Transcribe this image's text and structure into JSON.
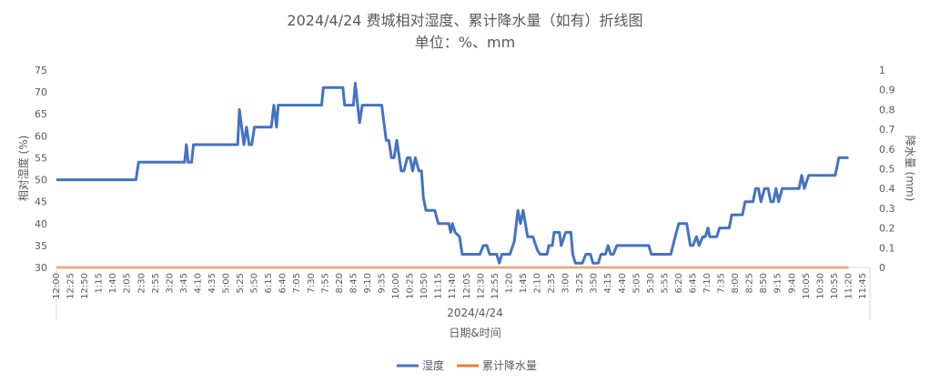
{
  "chart_data": {
    "type": "line",
    "title": "2024/4/24 费城相对湿度、累计降水量（如有）折线图",
    "subtitle": "单位：%、mm",
    "xlabel": "日期&时间",
    "x_group_label": "2024/4/24",
    "ylabel_left": "相对湿度 (%)",
    "ylabel_right": "降水量 (mm)",
    "ylim_left": [
      30,
      75
    ],
    "ylim_right": [
      0,
      1
    ],
    "yticks_left": [
      "75",
      "70",
      "65",
      "60",
      "55",
      "50",
      "45",
      "40",
      "35",
      "30"
    ],
    "yticks_right": [
      "1",
      "0.9",
      "0.8",
      "0.7",
      "0.6",
      "0.5",
      "0.4",
      "0.3",
      "0.2",
      "0.1",
      "0"
    ],
    "x_tick_labels": [
      "12:00",
      "12:25",
      "12:50",
      "1:15",
      "1:40",
      "2:05",
      "2:30",
      "2:55",
      "3:20",
      "3:45",
      "4:10",
      "4:35",
      "5:00",
      "5:25",
      "5:50",
      "6:15",
      "6:40",
      "7:05",
      "7:30",
      "7:55",
      "8:20",
      "8:45",
      "9:10",
      "9:35",
      "10:00",
      "10:25",
      "10:50",
      "11:15",
      "11:40",
      "12:05",
      "12:30",
      "12:55",
      "1:20",
      "1:45",
      "2:10",
      "2:35",
      "3:00",
      "3:25",
      "3:50",
      "4:15",
      "4:40",
      "5:05",
      "5:30",
      "5:55",
      "6:20",
      "6:45",
      "7:10",
      "7:35",
      "8:00",
      "8:25",
      "8:50",
      "9:15",
      "9:40",
      "10:05",
      "10:30",
      "10:55",
      "11:20",
      "11:45"
    ],
    "grid": false,
    "legend": "bottom",
    "series": [
      {
        "name": "湿度",
        "axis": "left",
        "color": "#4472C4",
        "points": [
          [
            0,
            50
          ],
          [
            9,
            50
          ],
          [
            9.3,
            54
          ],
          [
            14.5,
            54
          ],
          [
            14.7,
            58
          ],
          [
            14.9,
            54
          ],
          [
            15.3,
            54
          ],
          [
            15.5,
            58
          ],
          [
            20.5,
            58
          ],
          [
            20.7,
            66
          ],
          [
            21.2,
            58
          ],
          [
            21.5,
            62
          ],
          [
            21.8,
            58
          ],
          [
            22.1,
            58
          ],
          [
            22.4,
            62
          ],
          [
            24.3,
            62
          ],
          [
            24.6,
            67
          ],
          [
            24.9,
            62
          ],
          [
            25.1,
            67
          ],
          [
            30,
            67
          ],
          [
            30.2,
            71
          ],
          [
            32.4,
            71
          ],
          [
            32.6,
            67
          ],
          [
            33.6,
            67
          ],
          [
            33.8,
            72
          ],
          [
            34.3,
            63
          ],
          [
            34.6,
            67
          ],
          [
            36.8,
            67
          ],
          [
            37.3,
            59
          ],
          [
            37.6,
            59
          ],
          [
            37.9,
            55
          ],
          [
            38.2,
            55
          ],
          [
            38.5,
            59
          ],
          [
            39,
            52
          ],
          [
            39.3,
            52
          ],
          [
            39.7,
            55
          ],
          [
            40,
            55
          ],
          [
            40.3,
            52
          ],
          [
            40.6,
            55
          ],
          [
            41,
            52
          ],
          [
            41.3,
            52
          ],
          [
            41.5,
            46
          ],
          [
            41.8,
            43
          ],
          [
            42.8,
            43
          ],
          [
            43.2,
            40
          ],
          [
            44.4,
            40
          ],
          [
            44.6,
            38
          ],
          [
            44.8,
            40
          ],
          [
            45.1,
            38
          ],
          [
            45.6,
            37
          ],
          [
            45.9,
            33
          ],
          [
            47.9,
            33
          ],
          [
            48.3,
            35
          ],
          [
            48.7,
            35
          ],
          [
            49,
            33
          ],
          [
            49.8,
            33
          ],
          [
            50.1,
            31
          ],
          [
            50.4,
            33
          ],
          [
            51.3,
            33
          ],
          [
            51.8,
            36
          ],
          [
            52.2,
            43
          ],
          [
            52.5,
            40
          ],
          [
            52.8,
            43
          ],
          [
            53.3,
            37
          ],
          [
            53.9,
            37
          ],
          [
            54.4,
            34
          ],
          [
            54.7,
            33
          ],
          [
            55.5,
            33
          ],
          [
            55.7,
            35
          ],
          [
            56.1,
            35
          ],
          [
            56.3,
            38
          ],
          [
            56.9,
            38
          ],
          [
            57.1,
            35
          ],
          [
            57.6,
            38
          ],
          [
            58.2,
            38
          ],
          [
            58.4,
            33
          ],
          [
            58.7,
            31
          ],
          [
            59.5,
            31
          ],
          [
            59.9,
            33
          ],
          [
            60.4,
            33
          ],
          [
            60.7,
            31
          ],
          [
            61.3,
            31
          ],
          [
            61.6,
            33
          ],
          [
            62.1,
            33
          ],
          [
            62.4,
            35
          ],
          [
            62.7,
            33
          ],
          [
            63,
            33
          ],
          [
            63.4,
            35
          ],
          [
            67,
            35
          ],
          [
            67.3,
            33
          ],
          [
            69.5,
            33
          ],
          [
            70,
            37
          ],
          [
            70.4,
            40
          ],
          [
            71.3,
            40
          ],
          [
            71.7,
            35
          ],
          [
            72,
            35
          ],
          [
            72.4,
            37
          ],
          [
            72.7,
            35
          ],
          [
            73.1,
            37
          ],
          [
            73.4,
            37
          ],
          [
            73.7,
            39
          ],
          [
            73.9,
            37
          ],
          [
            74.7,
            37
          ],
          [
            75,
            39
          ],
          [
            76.1,
            39
          ],
          [
            76.4,
            42
          ],
          [
            77.6,
            42
          ],
          [
            77.9,
            45
          ],
          [
            78.8,
            45
          ],
          [
            79.1,
            48
          ],
          [
            79.4,
            48
          ],
          [
            79.7,
            45
          ],
          [
            80.1,
            48
          ],
          [
            80.5,
            48
          ],
          [
            80.8,
            45
          ],
          [
            81.1,
            45
          ],
          [
            81.4,
            48
          ],
          [
            81.7,
            45
          ],
          [
            82.1,
            48
          ],
          [
            84,
            48
          ],
          [
            84.3,
            51
          ],
          [
            84.6,
            48
          ],
          [
            85.1,
            51
          ],
          [
            88.1,
            51
          ],
          [
            88.5,
            55
          ],
          [
            89.6,
            55
          ]
        ]
      },
      {
        "name": "累计降水量",
        "axis": "right",
        "color": "#ED7D31",
        "points": [
          [
            0,
            0
          ],
          [
            89.6,
            0
          ]
        ]
      }
    ]
  }
}
